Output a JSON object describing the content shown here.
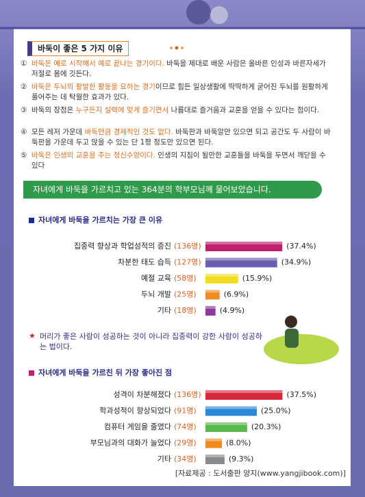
{
  "header": {
    "title": "바둑이 좋은 5 가지 이유"
  },
  "reasons": [
    {
      "number": "①",
      "parts": [
        {
          "text": "바둑은 예로 시작해서 예로 끝나는 경기이다.",
          "highlight": true
        },
        {
          "text": " 바둑을 제대로 배운 사람은 올바른 인성과 바른자세가 저절로 몸에 깃든다.",
          "highlight": false
        }
      ]
    },
    {
      "number": "②",
      "parts": [
        {
          "text": "바둑은 두뇌의 활발한 활동을 요하는 경기",
          "highlight": true
        },
        {
          "text": "이므로 힘든 일상생활에 딱딱하게 굳어진 두뇌를 원활하게 풀어주는 데 탁월한 효과가 있다.",
          "highlight": false
        }
      ]
    },
    {
      "number": "③",
      "parts": [
        {
          "text": "바둑의 장점은 ",
          "highlight": false
        },
        {
          "text": "누구든지 실력에 맞게 즐기면서",
          "highlight": true
        },
        {
          "text": " 나름대로 즐거움과 교훈을 얻을 수 있다는 점이다.",
          "highlight": false
        }
      ]
    },
    {
      "number": "④",
      "parts": [
        {
          "text": "모든 레저 가운데 ",
          "highlight": false
        },
        {
          "text": "바둑만큼 경제적인 것도 없다.",
          "highlight": true
        },
        {
          "text": " 바둑판과 바둑알만 있으면 되고 공간도 두 사람이 바둑판을 가운데 두고 앉을 수 있는 단 1평 정도만 있으면 된다.",
          "highlight": false
        }
      ]
    },
    {
      "number": "⑤",
      "parts": [
        {
          "text": "바둑은 인생의 교훈을 주는 정신수양이다.",
          "highlight": true
        },
        {
          "text": " 인생의 지침이 될만한 교훈들을 바둑을 두면서 깨닫을 수 있다",
          "highlight": false
        }
      ]
    }
  ],
  "banner": "자녀에게 바둑을 가르치고 있는 364분의 학부모님께 물어보았습니다.",
  "note": {
    "star": "★",
    "text": "머리가 좋은 사람이 성공하는 것이 아니라 집중력이 강한 사람이 성공하는 법이다."
  },
  "source": "[자료제공 : 도서출판 양지(www.yangjibook.com)]",
  "chart_data": [
    {
      "type": "bar",
      "title": "자녀에게 바둑을 가르치는 가장 큰 이유",
      "marker_color": "#1a2a9a",
      "categories": [
        "집중력 향상과 학업성적의 증진",
        "차분한 태도 습득",
        "예절 교육",
        "두뇌 개발",
        "기타"
      ],
      "count_labels": [
        "(136명)",
        "(127명)",
        "(58명)",
        "(25명)",
        "(18명)"
      ],
      "values": [
        37.4,
        34.9,
        15.9,
        6.9,
        4.9
      ],
      "value_labels": [
        "(37.4%)",
        "(34.9%)",
        "(15.9%)",
        "(6.9%)",
        "(4.9%)"
      ],
      "colors": [
        "#c0206e",
        "#6a5cb0",
        "#f0dc20",
        "#f08a20",
        "#8a3c9c"
      ]
    },
    {
      "type": "bar",
      "title": "자녀에게 바둑을 가르친 뒤 가장 좋아진 점",
      "marker_color": "#c0206e",
      "categories": [
        "성격이 차분해졌다",
        "학과성적이 향상되었다",
        "컴퓨터 게임을 줄였다",
        "부모님과의 대화가 늘었다",
        "기타"
      ],
      "count_labels": [
        "(136명)",
        "(91명)",
        "(74명)",
        "(29명)",
        "(34명)"
      ],
      "values": [
        37.5,
        25.0,
        20.3,
        8.0,
        9.3
      ],
      "value_labels": [
        "(37.5%)",
        "(25.0%)",
        "(20.3%)",
        "(8.0%)",
        "(9.3%)"
      ],
      "colors": [
        "#d8283c",
        "#2a8ad8",
        "#58b848",
        "#f08a20",
        "#8a8a8a"
      ]
    }
  ]
}
